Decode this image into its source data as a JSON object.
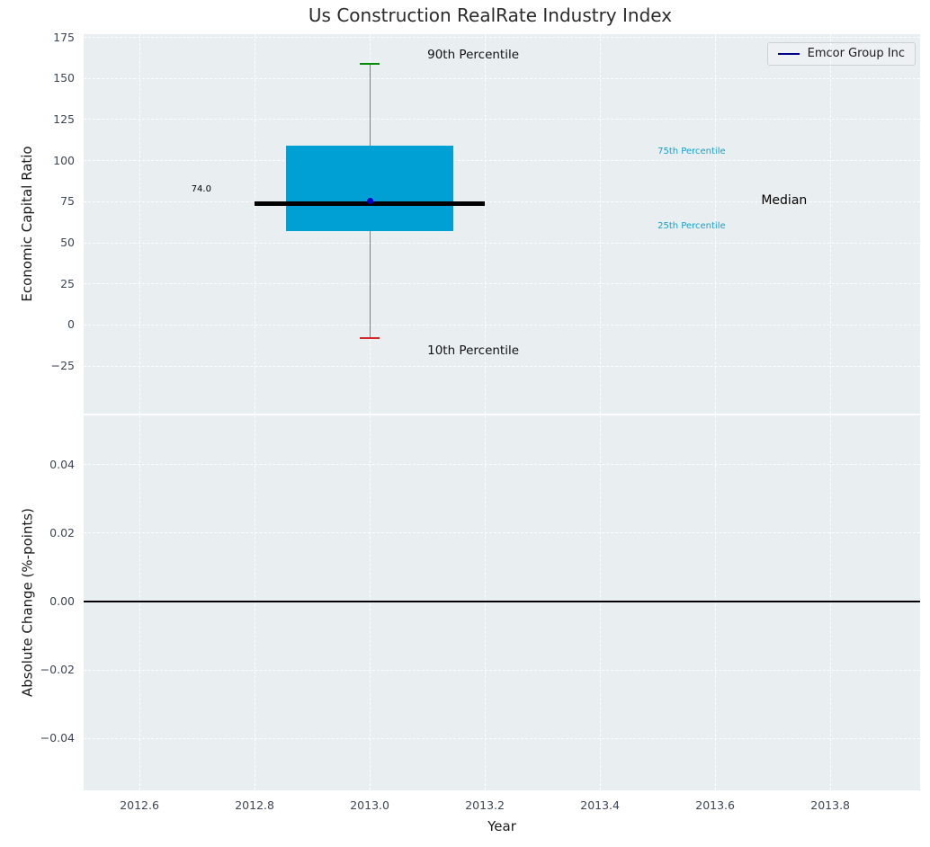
{
  "chart_data": {
    "type": "box",
    "title": "Us Construction RealRate Industry Index",
    "xlim": [
      2012.503,
      2013.956
    ],
    "colors": {
      "box": "#00a0d4",
      "median": "#000000",
      "whisker": "#7f7f7f",
      "cap_top": "#008a00",
      "cap_bottom": "#d62728",
      "company_dot": "#0000cc",
      "legend_line": "#00008b",
      "percentile_text": "#17a2c6",
      "zero_line": "#000000"
    },
    "legend": {
      "label": "Emcor Group Inc",
      "loc": "upper right"
    },
    "panels": [
      {
        "ylabel": "Economic Capital Ratio",
        "ylim": [
          -54,
          177
        ],
        "yticks": [
          175,
          150,
          125,
          100,
          75,
          50,
          25,
          0,
          -25
        ],
        "series": {
          "company": "Emcor Group Inc",
          "x": 2013.0,
          "p10": -8,
          "p25": 57,
          "median": 74.0,
          "p75": 109,
          "p90": 159,
          "company_value": 75.3,
          "box_half_width": 0.145,
          "median_half_width": 0.2
        },
        "annotations": [
          {
            "name": "annotation-90th-percentile",
            "text": "90th Percentile",
            "x": 2013.1,
            "y": 163,
            "color": "#111111",
            "size": 13.5
          },
          {
            "name": "annotation-10th-percentile",
            "text": "10th Percentile",
            "x": 2013.1,
            "y": -17,
            "color": "#111111",
            "size": 13.5
          },
          {
            "name": "annotation-75th-percentile",
            "text": "75th Percentile",
            "x": 2013.5,
            "y": 104,
            "color": "#17a2c6",
            "size": 10
          },
          {
            "name": "annotation-25th-percentile",
            "text": "25th Percentile",
            "x": 2013.5,
            "y": 59,
            "color": "#17a2c6",
            "size": 10
          },
          {
            "name": "annotation-median",
            "text": "Median",
            "x": 2013.68,
            "y": 74,
            "color": "#000000",
            "size": 14
          },
          {
            "name": "annotation-median-value",
            "text": "74.0",
            "x": 2012.69,
            "y": 81,
            "color": "#000000",
            "size": 10
          }
        ]
      },
      {
        "ylabel": "Absolute Change (%-points)",
        "ylim": [
          -0.0551,
          0.0543
        ],
        "yticks": [
          0.04,
          0.02,
          0.0,
          -0.02,
          -0.04
        ],
        "zero_line": 0.0,
        "xlabel": "Year",
        "xticks": [
          2012.6,
          2012.8,
          2013.0,
          2013.2,
          2013.4,
          2013.6,
          2013.8
        ]
      }
    ]
  }
}
